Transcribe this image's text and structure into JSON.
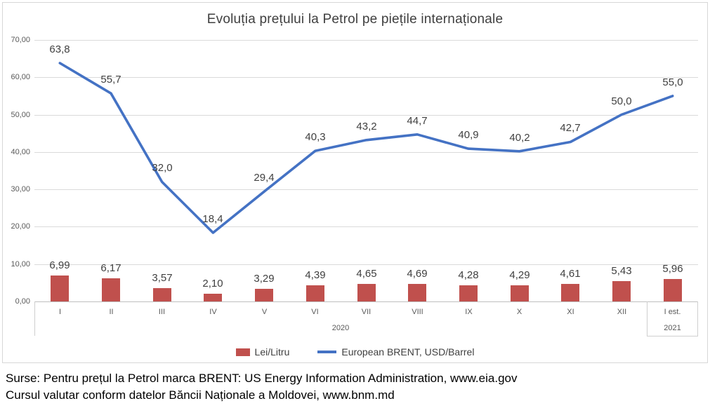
{
  "title": "Evoluția prețului la Petrol pe piețile internaționale",
  "chart_data": {
    "type": "combo-bar-line",
    "categories": [
      "I",
      "II",
      "III",
      "IV",
      "V",
      "VI",
      "VII",
      "VIII",
      "IX",
      "X",
      "XI",
      "XII",
      "I est."
    ],
    "category_groups": [
      {
        "label": "2020",
        "span": 12
      },
      {
        "label": "2021",
        "span": 1
      }
    ],
    "series": [
      {
        "name": "Lei/Litru",
        "type": "bar",
        "color": "#c0504d",
        "values": [
          6.99,
          6.17,
          3.57,
          2.1,
          3.29,
          4.39,
          4.65,
          4.69,
          4.28,
          4.29,
          4.61,
          5.43,
          5.96
        ],
        "labels": [
          "6,99",
          "6,17",
          "3,57",
          "2,10",
          "3,29",
          "4,39",
          "4,65",
          "4,69",
          "4,28",
          "4,29",
          "4,61",
          "5,43",
          "5,96"
        ]
      },
      {
        "name": "European BRENT, USD/Barrel",
        "type": "line",
        "color": "#4472c4",
        "values": [
          63.8,
          55.7,
          32.0,
          18.4,
          29.4,
          40.3,
          43.2,
          44.7,
          40.9,
          40.2,
          42.7,
          50.0,
          55.0
        ],
        "labels": [
          "63,8",
          "55,7",
          "32,0",
          "18,4",
          "29,4",
          "40,3",
          "43,2",
          "44,7",
          "40,9",
          "40,2",
          "42,7",
          "50,0",
          "55,0"
        ]
      }
    ],
    "title": "Evoluția prețului la Petrol pe piețile internaționale",
    "xlabel": "",
    "ylabel": "",
    "ylim": [
      0,
      70
    ],
    "yticks": [
      {
        "value": 0,
        "label": "0,00"
      },
      {
        "value": 10,
        "label": "10,00"
      },
      {
        "value": 20,
        "label": "20,00"
      },
      {
        "value": 30,
        "label": "30,00"
      },
      {
        "value": 40,
        "label": "40,00"
      },
      {
        "value": 50,
        "label": "50,00"
      },
      {
        "value": 60,
        "label": "60,00"
      },
      {
        "value": 70,
        "label": "70,00"
      }
    ],
    "grid": true,
    "legend_position": "bottom"
  },
  "legend": {
    "items": [
      {
        "label": "Lei/Litru"
      },
      {
        "label": "European BRENT, USD/Barrel"
      }
    ]
  },
  "footer": {
    "line1": "Surse: Pentru prețul la Petrol marca BRENT: US Energy Information Administration, www.eia.gov",
    "line2": "Cursul valutar conform datelor Băncii Naționale a Moldovei, www.bnm.md"
  },
  "colors": {
    "bar": "#c0504d",
    "line": "#4472c4",
    "gridline": "#dadada",
    "axis_text": "#595959",
    "label_text": "#404040",
    "title_text": "#3f3f3f"
  }
}
